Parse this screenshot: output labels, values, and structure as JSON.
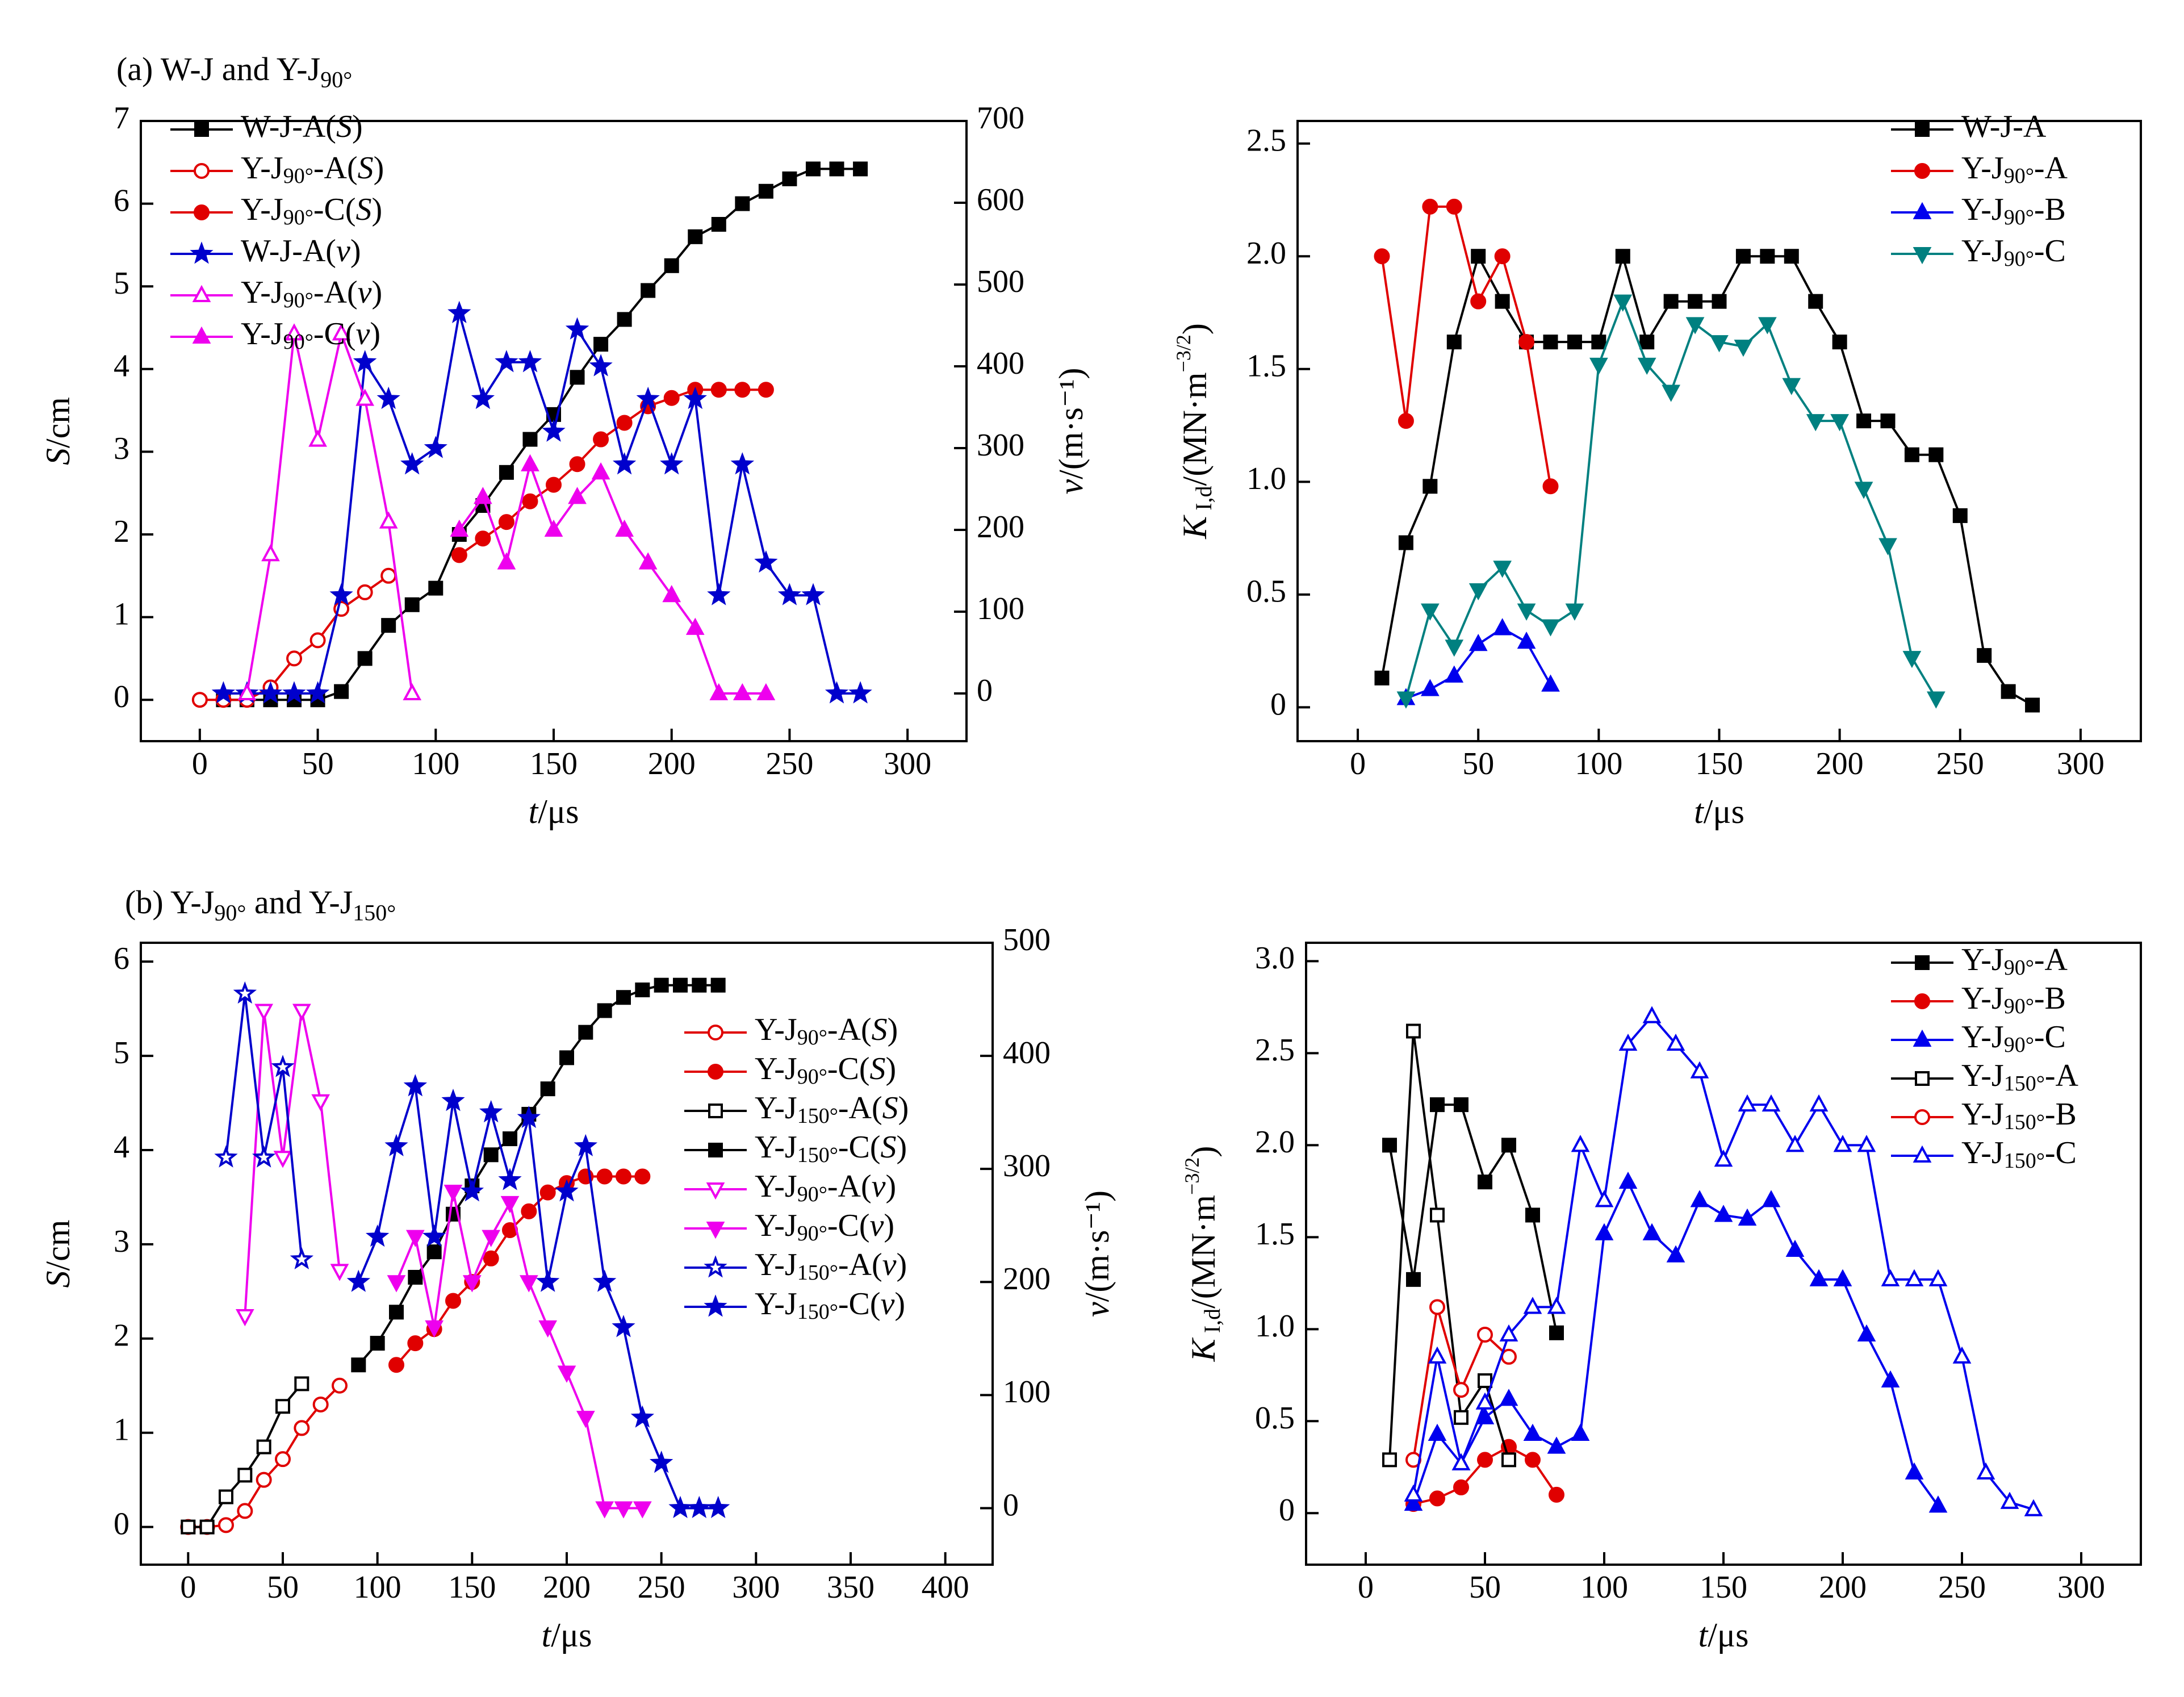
{
  "panels": {
    "a_label": "(a) W-J and Y-J₉₀°",
    "a_label_main": "(a) W-J and Y-J",
    "a_label_sub": "90°",
    "b_label_main": "(b) Y-J",
    "b_label_sub1": "90°",
    "b_label_mid": " and Y-J",
    "b_label_sub2": "150°"
  },
  "chart_data": [
    {
      "id": "a-left",
      "type": "line",
      "xlabel": "t/μs",
      "ylabel": "S/cm",
      "y2label": "v/(m·s⁻¹)",
      "xlim": [
        -25,
        325
      ],
      "ylim": [
        -0.5,
        7
      ],
      "y2lim": [
        -58.3,
        700
      ],
      "xticks": [
        0,
        50,
        100,
        150,
        200,
        250,
        300
      ],
      "yticks": [
        0,
        1,
        2,
        3,
        4,
        5,
        6,
        7
      ],
      "y2ticks": [
        0,
        100,
        200,
        300,
        400,
        500,
        600,
        700
      ],
      "legend_position": "top-left",
      "series": [
        {
          "name": "W-J-A(S)",
          "axis": "left",
          "color": "#000000",
          "marker": "square",
          "filled": true,
          "x": [
            10,
            20,
            30,
            40,
            50,
            60,
            70,
            80,
            90,
            100,
            110,
            120,
            130,
            140,
            150,
            160,
            170,
            180,
            190,
            200,
            210,
            220,
            230,
            240,
            250,
            260,
            270,
            280
          ],
          "y": [
            0,
            0,
            0,
            0,
            0,
            0.1,
            0.5,
            0.9,
            1.15,
            1.35,
            2.0,
            2.35,
            2.75,
            3.15,
            3.45,
            3.9,
            4.3,
            4.6,
            4.95,
            5.25,
            5.6,
            5.75,
            6.0,
            6.15,
            6.3,
            6.42,
            6.42,
            6.42
          ]
        },
        {
          "name": "Y-J90°-A(S)",
          "axis": "left",
          "color": "#e00000",
          "marker": "circle",
          "filled": false,
          "x": [
            0,
            10,
            20,
            30,
            40,
            50,
            60,
            70,
            80
          ],
          "y": [
            0,
            0,
            0,
            0.15,
            0.5,
            0.72,
            1.1,
            1.3,
            1.5
          ]
        },
        {
          "name": "Y-J90°-C(S)",
          "axis": "left",
          "color": "#e00000",
          "marker": "circle",
          "filled": true,
          "x": [
            110,
            120,
            130,
            140,
            150,
            160,
            170,
            180,
            190,
            200,
            210,
            220,
            230,
            240
          ],
          "y": [
            1.75,
            1.95,
            2.15,
            2.4,
            2.6,
            2.85,
            3.15,
            3.35,
            3.55,
            3.65,
            3.75,
            3.75,
            3.75,
            3.75
          ]
        },
        {
          "name": "W-J-A(v)",
          "axis": "right",
          "color": "#0000cc",
          "marker": "star",
          "filled": true,
          "x": [
            10,
            20,
            30,
            40,
            50,
            60,
            70,
            80,
            90,
            100,
            110,
            120,
            130,
            140,
            150,
            160,
            170,
            180,
            190,
            200,
            210,
            220,
            230,
            240,
            250,
            260,
            270,
            280
          ],
          "y": [
            0,
            0,
            0,
            0,
            0,
            120,
            405,
            360,
            280,
            300,
            465,
            360,
            405,
            405,
            320,
            445,
            400,
            280,
            360,
            280,
            360,
            120,
            280,
            160,
            120,
            120,
            0,
            0
          ]
        },
        {
          "name": "Y-J90°-A(v)",
          "axis": "right",
          "color": "#ee00ee",
          "marker": "triangle",
          "filled": false,
          "x": [
            20,
            30,
            40,
            50,
            60,
            70,
            80,
            90
          ],
          "y": [
            0,
            170,
            440,
            310,
            440,
            360,
            210,
            0
          ]
        },
        {
          "name": "Y-J90°-C(v)",
          "axis": "right",
          "color": "#ee00ee",
          "marker": "triangle",
          "filled": true,
          "x": [
            110,
            120,
            130,
            140,
            150,
            160,
            170,
            180,
            190,
            200,
            210,
            220,
            230,
            240
          ],
          "y": [
            200,
            240,
            160,
            280,
            200,
            240,
            270,
            200,
            160,
            120,
            80,
            0,
            0,
            0
          ]
        }
      ]
    },
    {
      "id": "a-right",
      "type": "line",
      "xlabel": "t/μs",
      "ylabel": "K I,d /(MN·m^-3/2)",
      "xlim": [
        -25,
        325
      ],
      "ylim": [
        -0.15,
        2.6
      ],
      "xticks": [
        0,
        50,
        100,
        150,
        200,
        250,
        300
      ],
      "yticks": [
        0,
        0.5,
        1.0,
        1.5,
        2.0,
        2.5
      ],
      "ytick_labels": [
        "0",
        "0.5",
        "1.0",
        "1.5",
        "2.0",
        "2.5"
      ],
      "legend_position": "top-right",
      "series": [
        {
          "name": "W-J-A",
          "color": "#000000",
          "marker": "square",
          "filled": true,
          "x": [
            10,
            20,
            30,
            40,
            50,
            60,
            70,
            80,
            90,
            100,
            110,
            120,
            130,
            140,
            150,
            160,
            170,
            180,
            190,
            200,
            210,
            220,
            230,
            240,
            250,
            260,
            270,
            280
          ],
          "y": [
            0.13,
            0.73,
            0.98,
            1.62,
            2.0,
            1.8,
            1.62,
            1.62,
            1.62,
            1.62,
            2.0,
            1.62,
            1.8,
            1.8,
            1.8,
            2.0,
            2.0,
            2.0,
            1.8,
            1.62,
            1.27,
            1.27,
            1.12,
            1.12,
            0.85,
            0.23,
            0.07,
            0.01
          ]
        },
        {
          "name": "Y-J90°-A",
          "color": "#e00000",
          "marker": "circle",
          "filled": true,
          "x": [
            10,
            20,
            30,
            40,
            50,
            60,
            70,
            80
          ],
          "y": [
            2.0,
            1.27,
            2.22,
            2.22,
            1.8,
            2.0,
            1.62,
            0.98
          ]
        },
        {
          "name": "Y-J90°-B",
          "color": "#0000ee",
          "marker": "triangle",
          "filled": true,
          "x": [
            20,
            30,
            40,
            50,
            60,
            70,
            80
          ],
          "y": [
            0.04,
            0.08,
            0.14,
            0.28,
            0.35,
            0.29,
            0.1
          ]
        },
        {
          "name": "Y-J90°-C",
          "color": "#008080",
          "marker": "triangle-down",
          "filled": true,
          "x": [
            20,
            30,
            40,
            50,
            60,
            70,
            80,
            90,
            100,
            110,
            120,
            130,
            140,
            150,
            160,
            170,
            180,
            190,
            200,
            210,
            220,
            230,
            240
          ],
          "y": [
            0.04,
            0.43,
            0.27,
            0.52,
            0.62,
            0.43,
            0.36,
            0.43,
            1.52,
            1.8,
            1.52,
            1.4,
            1.7,
            1.62,
            1.6,
            1.7,
            1.43,
            1.27,
            1.27,
            0.97,
            0.72,
            0.22,
            0.04
          ]
        }
      ]
    },
    {
      "id": "b-left",
      "type": "line",
      "xlabel": "t/μs",
      "ylabel": "S/cm",
      "y2label": "v/(m·s⁻¹)",
      "xlim": [
        -25,
        425
      ],
      "ylim": [
        -0.4,
        6.2
      ],
      "y2lim": [
        -50,
        500
      ],
      "xticks": [
        0,
        50,
        100,
        150,
        200,
        250,
        300,
        350,
        400
      ],
      "yticks": [
        0,
        1,
        2,
        3,
        4,
        5,
        6
      ],
      "y2ticks": [
        0,
        100,
        200,
        300,
        400,
        500
      ],
      "legend_position": "center-right",
      "series": [
        {
          "name": "Y-J90°-A(S)",
          "axis": "left",
          "color": "#e00000",
          "marker": "circle",
          "filled": false,
          "x": [
            0,
            10,
            20,
            30,
            40,
            50,
            60,
            70,
            80
          ],
          "y": [
            0,
            0,
            0.02,
            0.17,
            0.5,
            0.72,
            1.05,
            1.3,
            1.5
          ]
        },
        {
          "name": "Y-J90°-C(S)",
          "axis": "left",
          "color": "#e00000",
          "marker": "circle",
          "filled": true,
          "x": [
            110,
            120,
            130,
            140,
            150,
            160,
            170,
            180,
            190,
            200,
            210,
            220,
            230,
            240
          ],
          "y": [
            1.72,
            1.95,
            2.1,
            2.4,
            2.6,
            2.85,
            3.15,
            3.35,
            3.55,
            3.65,
            3.72,
            3.72,
            3.72,
            3.72
          ]
        },
        {
          "name": "Y-J150°-A(S)",
          "axis": "left",
          "color": "#000000",
          "marker": "square",
          "filled": false,
          "x": [
            0,
            10,
            20,
            30,
            40,
            50,
            60
          ],
          "y": [
            0,
            0,
            0.32,
            0.55,
            0.85,
            1.28,
            1.52
          ]
        },
        {
          "name": "Y-J150°-C(S)",
          "axis": "left",
          "color": "#000000",
          "marker": "square",
          "filled": true,
          "x": [
            90,
            100,
            110,
            120,
            130,
            140,
            150,
            160,
            170,
            180,
            190,
            200,
            210,
            220,
            230,
            240,
            250,
            260,
            270,
            280
          ],
          "y": [
            1.72,
            1.95,
            2.28,
            2.65,
            2.92,
            3.32,
            3.62,
            3.95,
            4.12,
            4.38,
            4.65,
            4.98,
            5.25,
            5.48,
            5.62,
            5.7,
            5.75,
            5.75,
            5.75,
            5.75
          ]
        },
        {
          "name": "Y-J90°-A(v)",
          "axis": "right",
          "color": "#ee00ee",
          "marker": "triangle-down",
          "filled": false,
          "x": [
            30,
            40,
            50,
            60,
            70,
            80
          ],
          "y": [
            170,
            440,
            310,
            440,
            360,
            210
          ]
        },
        {
          "name": "Y-J90°-C(v)",
          "axis": "right",
          "color": "#ee00ee",
          "marker": "triangle-down",
          "filled": true,
          "x": [
            110,
            120,
            130,
            140,
            150,
            160,
            170,
            180,
            190,
            200,
            210,
            220,
            230,
            240
          ],
          "y": [
            200,
            240,
            160,
            280,
            200,
            240,
            270,
            200,
            160,
            120,
            80,
            0,
            0,
            0
          ]
        },
        {
          "name": "Y-J150°-A(v)",
          "axis": "right",
          "color": "#0000cc",
          "marker": "star",
          "filled": false,
          "x": [
            20,
            30,
            40,
            50,
            60
          ],
          "y": [
            310,
            455,
            310,
            390,
            220
          ]
        },
        {
          "name": "Y-J150°-C(v)",
          "axis": "right",
          "color": "#0000cc",
          "marker": "star",
          "filled": true,
          "x": [
            90,
            100,
            110,
            120,
            130,
            140,
            150,
            160,
            170,
            180,
            190,
            200,
            210,
            220,
            230,
            240,
            250,
            260,
            270,
            280
          ],
          "y": [
            200,
            240,
            320,
            373,
            240,
            360,
            280,
            350,
            290,
            345,
            200,
            280,
            320,
            200,
            160,
            80,
            40,
            0,
            0,
            0
          ]
        }
      ]
    },
    {
      "id": "b-right",
      "type": "line",
      "xlabel": "t/μs",
      "ylabel": "K I,d /(MN·m^-3/2)",
      "xlim": [
        -25,
        325
      ],
      "ylim": [
        -0.28,
        3.1
      ],
      "xticks": [
        0,
        50,
        100,
        150,
        200,
        250,
        300
      ],
      "yticks": [
        0,
        0.5,
        1.0,
        1.5,
        2.0,
        2.5,
        3.0
      ],
      "ytick_labels": [
        "0",
        "0.5",
        "1.0",
        "1.5",
        "2.0",
        "2.5",
        "3.0"
      ],
      "legend_position": "top-right",
      "series": [
        {
          "name": "Y-J90°-A",
          "color": "#000000",
          "marker": "square",
          "filled": true,
          "x": [
            10,
            20,
            30,
            40,
            50,
            60,
            70,
            80
          ],
          "y": [
            2.0,
            1.27,
            2.22,
            2.22,
            1.8,
            2.0,
            1.62,
            0.98
          ]
        },
        {
          "name": "Y-J90°-B",
          "color": "#e00000",
          "marker": "circle",
          "filled": true,
          "x": [
            20,
            30,
            40,
            50,
            60,
            70,
            80
          ],
          "y": [
            0.05,
            0.08,
            0.14,
            0.29,
            0.36,
            0.29,
            0.1
          ]
        },
        {
          "name": "Y-J90°-C",
          "color": "#0000ee",
          "marker": "triangle",
          "filled": true,
          "x": [
            20,
            30,
            40,
            50,
            60,
            70,
            80,
            90,
            100,
            110,
            120,
            130,
            140,
            150,
            160,
            170,
            180,
            190,
            200,
            210,
            220,
            230,
            240
          ],
          "y": [
            0.05,
            0.43,
            0.27,
            0.52,
            0.62,
            0.43,
            0.36,
            0.43,
            1.52,
            1.8,
            1.52,
            1.4,
            1.7,
            1.62,
            1.6,
            1.7,
            1.43,
            1.27,
            1.27,
            0.97,
            0.72,
            0.22,
            0.04
          ]
        },
        {
          "name": "Y-J150°-A",
          "color": "#000000",
          "marker": "square",
          "filled": false,
          "x": [
            10,
            20,
            30,
            40,
            50,
            60
          ],
          "y": [
            0.29,
            2.62,
            1.62,
            0.52,
            0.72,
            0.29
          ]
        },
        {
          "name": "Y-J150°-B",
          "color": "#e00000",
          "marker": "circle",
          "filled": false,
          "x": [
            20,
            30,
            40,
            50,
            60
          ],
          "y": [
            0.29,
            1.12,
            0.67,
            0.97,
            0.85
          ]
        },
        {
          "name": "Y-J150°-C",
          "color": "#0000ee",
          "marker": "triangle",
          "filled": false,
          "x": [
            20,
            30,
            40,
            50,
            60,
            70,
            80,
            90,
            100,
            110,
            120,
            130,
            140,
            150,
            160,
            170,
            180,
            190,
            200,
            210,
            220,
            230,
            240,
            250,
            260,
            270,
            280
          ],
          "y": [
            0.1,
            0.85,
            0.27,
            0.6,
            0.97,
            1.12,
            1.12,
            2.0,
            1.7,
            2.55,
            2.7,
            2.55,
            2.4,
            1.92,
            2.22,
            2.22,
            2.0,
            2.22,
            2.0,
            2.0,
            1.27,
            1.27,
            1.27,
            0.85,
            0.22,
            0.06,
            0.02
          ]
        }
      ]
    }
  ]
}
